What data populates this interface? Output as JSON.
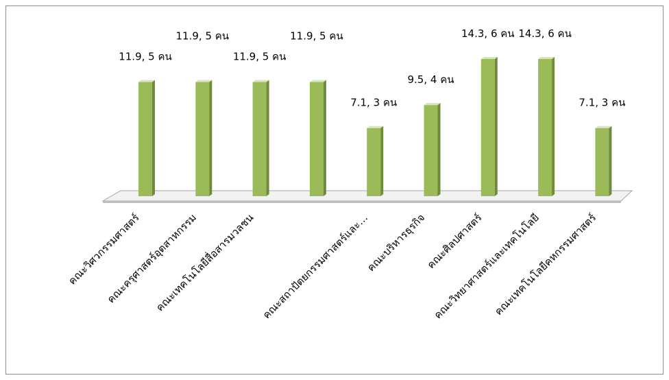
{
  "chart_data": {
    "type": "bar3d",
    "categories": [
      "คณะวิศวกรรมศาสตร์",
      "คณะครุศาสตร์อุตสาหกรรม",
      "คณะเทคโนโลยีสื่อสารมวลชน",
      null,
      "คณะสถาปัตยกรรมศาสตร์และ…",
      "คณะบริหารธุรกิจ",
      "คณะศิลปศาสตร์",
      "คณะวิทยาศาสตร์และเทคโนโลยี",
      "คณะเทคโนโลยีคหกรรมศาสตร์"
    ],
    "values": [
      11.9,
      11.9,
      11.9,
      11.9,
      7.1,
      9.5,
      14.3,
      14.3,
      7.1
    ],
    "value_labels": [
      "11.9, 5 คน",
      "11.9, 5 คน",
      "11.9, 5 คน",
      "11.9, 5 คน",
      "7.1, 3 คน",
      "9.5, 4 คน",
      "14.3, 6 คน",
      "14.3, 6 คน",
      "7.1, 3 คน"
    ],
    "color": "#9bbb59"
  }
}
